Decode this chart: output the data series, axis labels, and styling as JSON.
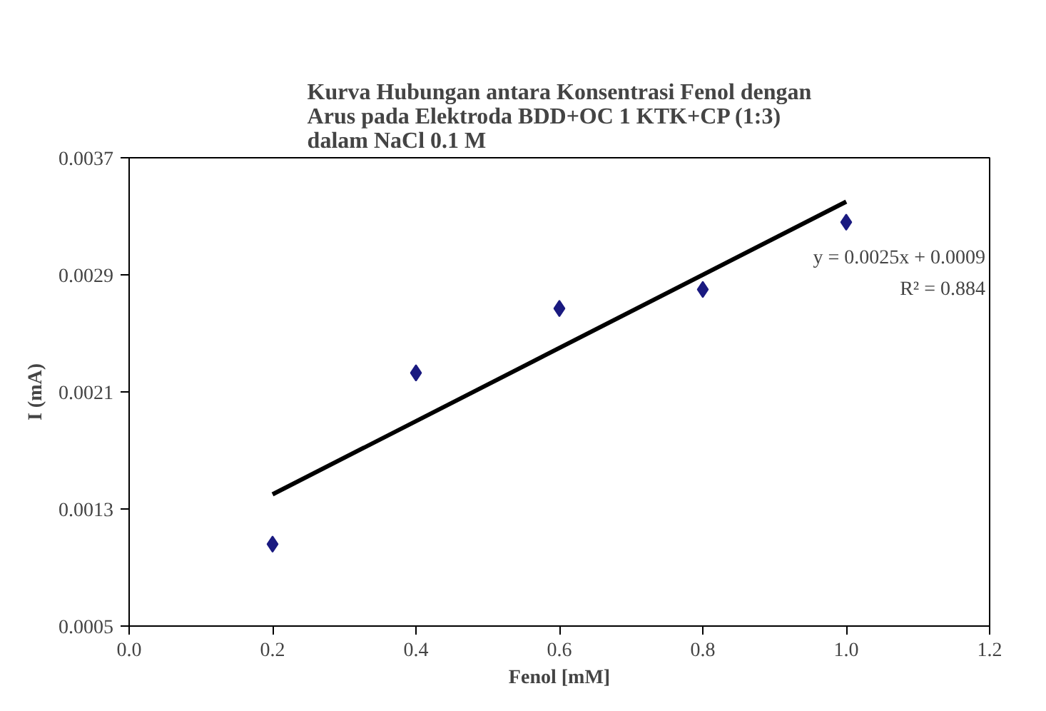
{
  "chart_data": {
    "type": "scatter",
    "title": "Kurva Hubungan antara Konsentrasi Fenol dengan\nArus pada Elektroda BDD+OC 1 KTK+CP (1:3)\ndalam NaCl 0.1 M",
    "xlabel": "Fenol [mM]",
    "ylabel": "I (mA)",
    "x": [
      0.2,
      0.4,
      0.6,
      0.8,
      1.0
    ],
    "series": [
      {
        "color": "#1a1a80",
        "marker": "diamond",
        "values": [
          0.00106,
          0.00223,
          0.00267,
          0.0028,
          0.00326
        ]
      },
      {
        "type": "line",
        "color": "#000000",
        "x": [
          0.2,
          1.0
        ],
        "values": [
          0.0014,
          0.0034
        ]
      }
    ],
    "xlim": [
      0,
      1.2
    ],
    "ylim": [
      0.0005,
      0.0037
    ],
    "xticks": [
      {
        "value": 0,
        "label": "0.0"
      },
      {
        "value": 0.2,
        "label": "0.2"
      },
      {
        "value": 0.4,
        "label": "0.4"
      },
      {
        "value": 0.6,
        "label": "0.6"
      },
      {
        "value": 0.8,
        "label": "0.8"
      },
      {
        "value": 1.0,
        "label": "1.0"
      },
      {
        "value": 1.2,
        "label": "1.2"
      }
    ],
    "yticks": [
      0.0005,
      0.0013,
      0.0021,
      0.0029,
      0.0037
    ],
    "annotations": [
      "y = 0.0025x + 0.0009",
      "R² = 0.884"
    ],
    "grid": false
  }
}
